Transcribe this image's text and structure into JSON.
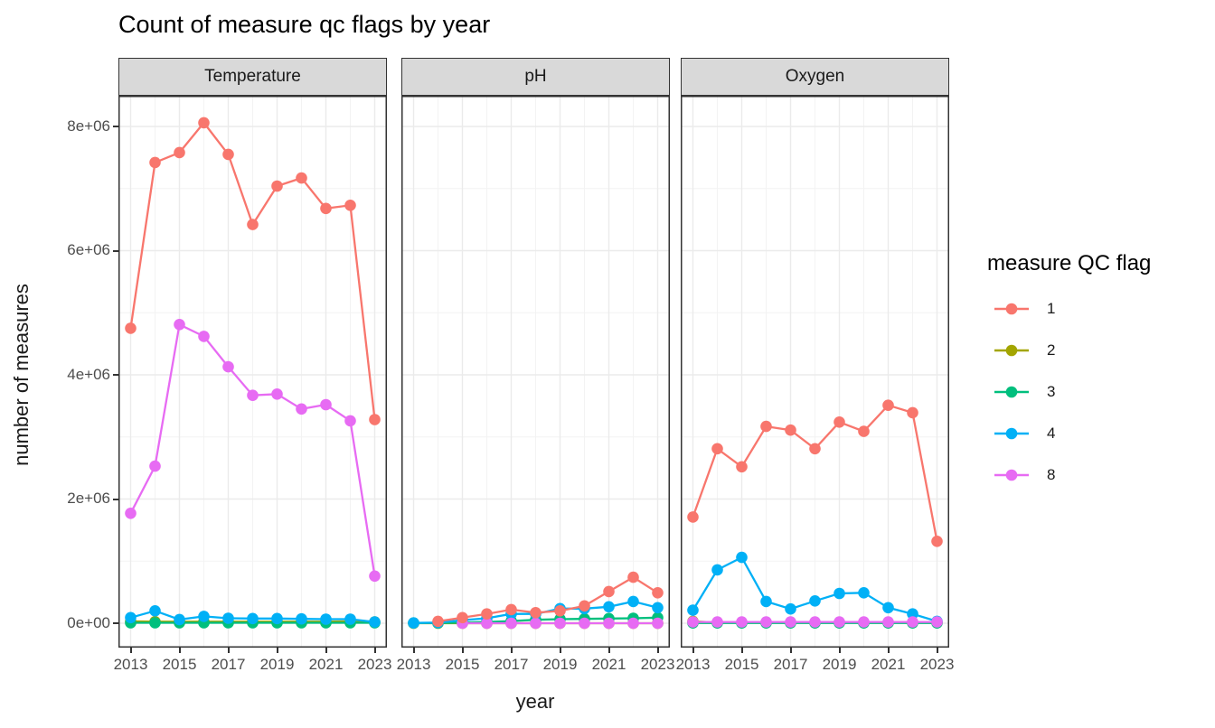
{
  "chart_data": {
    "type": "line",
    "title": "Count of measure qc flags by year",
    "xlabel": "year",
    "ylabel": "number of measures",
    "legend_title": "measure QC flag",
    "legend_position": "right",
    "grid": true,
    "x": [
      2013,
      2014,
      2015,
      2016,
      2017,
      2018,
      2019,
      2020,
      2021,
      2022,
      2023
    ],
    "x_tick_labels": [
      "2013",
      "2015",
      "2017",
      "2019",
      "2021",
      "2023"
    ],
    "y_ticks": [
      {
        "label": "0e+00",
        "value": 0
      },
      {
        "label": "2e+06",
        "value": 2000000
      },
      {
        "label": "4e+06",
        "value": 4000000
      },
      {
        "label": "6e+06",
        "value": 6000000
      },
      {
        "label": "8e+06",
        "value": 8000000
      }
    ],
    "ylim": [
      0,
      8490000
    ],
    "palette": {
      "1": "#F8766D",
      "2": "#A3A500",
      "3": "#00BF7D",
      "4": "#00B0F6",
      "8": "#E76BF3"
    },
    "draw_order": [
      "2",
      "3",
      "4",
      "8",
      "1"
    ],
    "facets": [
      {
        "label": "Temperature",
        "series": [
          {
            "name": "1",
            "values": [
              4750000,
              7420000,
              7580000,
              8060000,
              7550000,
              6420000,
              7040000,
              7170000,
              6680000,
              6730000,
              3280000
            ]
          },
          {
            "name": "2",
            "values": [
              30000,
              25000,
              25000,
              25000,
              25000,
              25000,
              25000,
              25000,
              25000,
              30000,
              20000
            ]
          },
          {
            "name": "3",
            "values": [
              8000,
              8000,
              8000,
              8000,
              8000,
              8000,
              8000,
              8000,
              8000,
              8000,
              8000
            ]
          },
          {
            "name": "4",
            "values": [
              90000,
              200000,
              60000,
              110000,
              80000,
              75000,
              75000,
              70000,
              65000,
              65000,
              20000
            ]
          },
          {
            "name": "8",
            "values": [
              1770000,
              2530000,
              4810000,
              4620000,
              4130000,
              3670000,
              3690000,
              3450000,
              3520000,
              3260000,
              760000
            ]
          }
        ]
      },
      {
        "label": "pH",
        "series": [
          {
            "name": "1",
            "values": [
              null,
              30000,
              90000,
              150000,
              220000,
              170000,
              200000,
              280000,
              510000,
              740000,
              490000
            ]
          },
          {
            "name": "2",
            "values": [
              0,
              0,
              0,
              0,
              0,
              0,
              0,
              0,
              0,
              0,
              0
            ]
          },
          {
            "name": "3",
            "values": [
              5000,
              5000,
              10000,
              20000,
              35000,
              55000,
              65000,
              70000,
              75000,
              80000,
              90000
            ]
          },
          {
            "name": "4",
            "values": [
              5000,
              10000,
              50000,
              80000,
              150000,
              150000,
              235000,
              235000,
              265000,
              350000,
              250000
            ]
          },
          {
            "name": "8",
            "values": [
              null,
              null,
              0,
              0,
              0,
              0,
              0,
              0,
              0,
              0,
              0
            ]
          }
        ]
      },
      {
        "label": "Oxygen",
        "series": [
          {
            "name": "1",
            "values": [
              1710000,
              2810000,
              2520000,
              3170000,
              3110000,
              2810000,
              3240000,
              3090000,
              3510000,
              3390000,
              1320000
            ]
          },
          {
            "name": "2",
            "values": [
              30000,
              10000,
              10000,
              10000,
              10000,
              10000,
              10000,
              10000,
              10000,
              10000,
              10000
            ]
          },
          {
            "name": "3",
            "values": [
              5000,
              5000,
              5000,
              5000,
              5000,
              5000,
              5000,
              5000,
              5000,
              5000,
              5000
            ]
          },
          {
            "name": "4",
            "values": [
              210000,
              860000,
              1060000,
              350000,
              230000,
              360000,
              480000,
              490000,
              250000,
              150000,
              30000
            ]
          },
          {
            "name": "8",
            "values": [
              20000,
              20000,
              20000,
              20000,
              20000,
              20000,
              20000,
              20000,
              20000,
              20000,
              20000
            ]
          }
        ]
      }
    ]
  },
  "legend": {
    "title": "measure QC flag",
    "items": [
      {
        "label": "1",
        "color": "#F8766D"
      },
      {
        "label": "2",
        "color": "#A3A500"
      },
      {
        "label": "3",
        "color": "#00BF7D"
      },
      {
        "label": "4",
        "color": "#00B0F6"
      },
      {
        "label": "8",
        "color": "#E76BF3"
      }
    ]
  },
  "style": {
    "strip_fill": "#D9D9D9",
    "panel_border": "#333333",
    "grid_major": "#EBEBEB",
    "grid_minor": "#F3F3F3",
    "tick_text": "#4D4D4D"
  }
}
